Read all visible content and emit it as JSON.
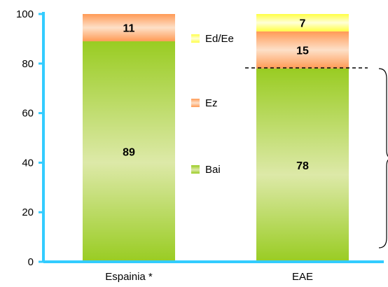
{
  "chart_data": {
    "type": "bar",
    "stacked": true,
    "categories": [
      "Espainia *",
      "EAE"
    ],
    "series": [
      {
        "name": "Bai",
        "values": [
          89,
          78
        ],
        "color": "#99cc33"
      },
      {
        "name": "Ez",
        "values": [
          11,
          15
        ],
        "color": "#ff9966"
      },
      {
        "name": "Ed/Ee",
        "values": [
          0,
          7
        ],
        "color": "#ffff66"
      }
    ],
    "yticks": [
      0,
      20,
      40,
      60,
      80,
      100
    ],
    "ylim": [
      0,
      100
    ],
    "axis_color": "#33ccff",
    "grid": false,
    "legend_position": "center-between-bars"
  }
}
